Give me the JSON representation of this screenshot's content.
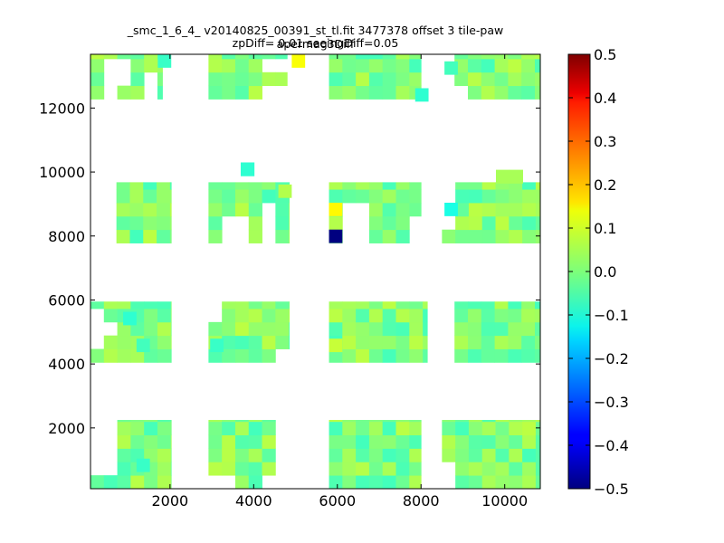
{
  "chart_data": {
    "type": "heatmap",
    "title_line1": "_smc_1_6_4_ v20140825_00391_st_tl.fit 3477378 offset 3 tile-paw apermag3Diff",
    "title_line2": "zpDiff= 0.01 seeingDiff=0.05",
    "xlabel": "",
    "ylabel": "",
    "xlim": [
      100,
      10850
    ],
    "ylim": [
      100,
      13680
    ],
    "x_ticks": [
      2000,
      4000,
      6000,
      8000,
      10000
    ],
    "y_ticks": [
      2000,
      4000,
      6000,
      8000,
      10000,
      12000
    ],
    "colormap": "jet",
    "color_range": [
      -0.5,
      0.5
    ],
    "colorbar_ticks": [
      0.5,
      0.4,
      0.3,
      0.2,
      0.1,
      0.0,
      -0.1,
      -0.2,
      -0.3,
      -0.4,
      -0.5
    ],
    "cell_size": [
      320,
      420
    ],
    "blocks": [
      {
        "x0": 100,
        "x1": 1820,
        "y0": 12280,
        "y1": 13680
      },
      {
        "x0": 2920,
        "x1": 4800,
        "y0": 12280,
        "y1": 13680
      },
      {
        "x0": 5800,
        "x1": 8000,
        "y0": 12280,
        "y1": 13680
      },
      {
        "x0": 8800,
        "x1": 10850,
        "y0": 12280,
        "y1": 13680
      },
      {
        "x0": 400,
        "x1": 2030,
        "y0": 7780,
        "y1": 9680
      },
      {
        "x0": 2920,
        "x1": 4850,
        "y0": 7780,
        "y1": 9680
      },
      {
        "x0": 5800,
        "x1": 8000,
        "y0": 7780,
        "y1": 9680
      },
      {
        "x0": 8500,
        "x1": 10850,
        "y0": 7780,
        "y1": 9680
      },
      {
        "x0": 100,
        "x1": 2030,
        "y0": 4050,
        "y1": 5950
      },
      {
        "x0": 2920,
        "x1": 4850,
        "y0": 4050,
        "y1": 5950
      },
      {
        "x0": 5800,
        "x1": 8150,
        "y0": 4050,
        "y1": 5950
      },
      {
        "x0": 8800,
        "x1": 10850,
        "y0": 4050,
        "y1": 5950
      },
      {
        "x0": 100,
        "x1": 2030,
        "y0": 100,
        "y1": 2250
      },
      {
        "x0": 2920,
        "x1": 4850,
        "y0": 100,
        "y1": 2250
      },
      {
        "x0": 5800,
        "x1": 8000,
        "y0": 100,
        "y1": 2250
      },
      {
        "x0": 8500,
        "x1": 10850,
        "y0": 100,
        "y1": 2250
      }
    ],
    "holes": [
      {
        "x": 500,
        "y": 13250
      },
      {
        "x": 820,
        "y": 13250
      },
      {
        "x": 500,
        "y": 12830
      },
      {
        "x": 820,
        "y": 12830
      },
      {
        "x": 500,
        "y": 12410
      },
      {
        "x": 1460,
        "y": 12410
      },
      {
        "x": 1460,
        "y": 12830
      },
      {
        "x": 4500,
        "y": 12410
      },
      {
        "x": 4500,
        "y": 13250
      },
      {
        "x": 9100,
        "y": 12410
      },
      {
        "x": 500,
        "y": 9440
      },
      {
        "x": 500,
        "y": 9020
      },
      {
        "x": 500,
        "y": 8600
      },
      {
        "x": 500,
        "y": 8180
      },
      {
        "x": 3550,
        "y": 8180
      },
      {
        "x": 4500,
        "y": 8180
      },
      {
        "x": 4500,
        "y": 8600
      },
      {
        "x": 6450,
        "y": 8180
      },
      {
        "x": 6450,
        "y": 8600
      },
      {
        "x": 7760,
        "y": 8180
      },
      {
        "x": 8650,
        "y": 9440
      },
      {
        "x": 8650,
        "y": 9020
      },
      {
        "x": 8650,
        "y": 8600
      },
      {
        "x": 300,
        "y": 5000
      },
      {
        "x": 300,
        "y": 4580
      },
      {
        "x": 300,
        "y": 5420
      },
      {
        "x": 620,
        "y": 5000
      },
      {
        "x": 3100,
        "y": 5420
      },
      {
        "x": 3100,
        "y": 5840
      },
      {
        "x": 4800,
        "y": 4180
      },
      {
        "x": 300,
        "y": 2090
      },
      {
        "x": 620,
        "y": 2090
      },
      {
        "x": 300,
        "y": 1670
      },
      {
        "x": 620,
        "y": 1670
      },
      {
        "x": 300,
        "y": 1250
      },
      {
        "x": 620,
        "y": 1250
      },
      {
        "x": 300,
        "y": 830
      },
      {
        "x": 620,
        "y": 830
      },
      {
        "x": 4800,
        "y": 2090
      },
      {
        "x": 4800,
        "y": 1670
      },
      {
        "x": 4800,
        "y": 1250
      },
      {
        "x": 4800,
        "y": 830
      },
      {
        "x": 3100,
        "y": 410
      },
      {
        "x": 3420,
        "y": 410
      },
      {
        "x": 4800,
        "y": 410
      },
      {
        "x": 4500,
        "y": 410
      },
      {
        "x": 8650,
        "y": 830
      },
      {
        "x": 8650,
        "y": 410
      }
    ],
    "extra_cells": [
      {
        "x": 3850,
        "y": 10090,
        "value": -0.08
      },
      {
        "x": 9950,
        "y": 9860,
        "value": 0.04
      },
      {
        "x": 10270,
        "y": 9860,
        "value": 0.04
      }
    ],
    "highlight_cells": [
      {
        "x": 5960,
        "y": 7990,
        "value": -0.5
      },
      {
        "x": 5960,
        "y": 8830,
        "value": 0.13
      },
      {
        "x": 5070,
        "y": 13470,
        "value": 0.12
      },
      {
        "x": 4750,
        "y": 9400,
        "value": 0.05
      },
      {
        "x": 1870,
        "y": 13470,
        "value": -0.07
      },
      {
        "x": 1040,
        "y": 5420,
        "value": -0.08
      },
      {
        "x": 1360,
        "y": 4580,
        "value": -0.06
      },
      {
        "x": 3120,
        "y": 4580,
        "value": -0.07
      },
      {
        "x": 8020,
        "y": 12410,
        "value": -0.08
      },
      {
        "x": 8720,
        "y": 13250,
        "value": -0.06
      },
      {
        "x": 8720,
        "y": 8830,
        "value": -0.1
      },
      {
        "x": 1360,
        "y": 830,
        "value": -0.07
      },
      {
        "x": 5960,
        "y": 4580,
        "value": 0.07
      }
    ],
    "base_value_range": [
      -0.06,
      0.06
    ]
  }
}
